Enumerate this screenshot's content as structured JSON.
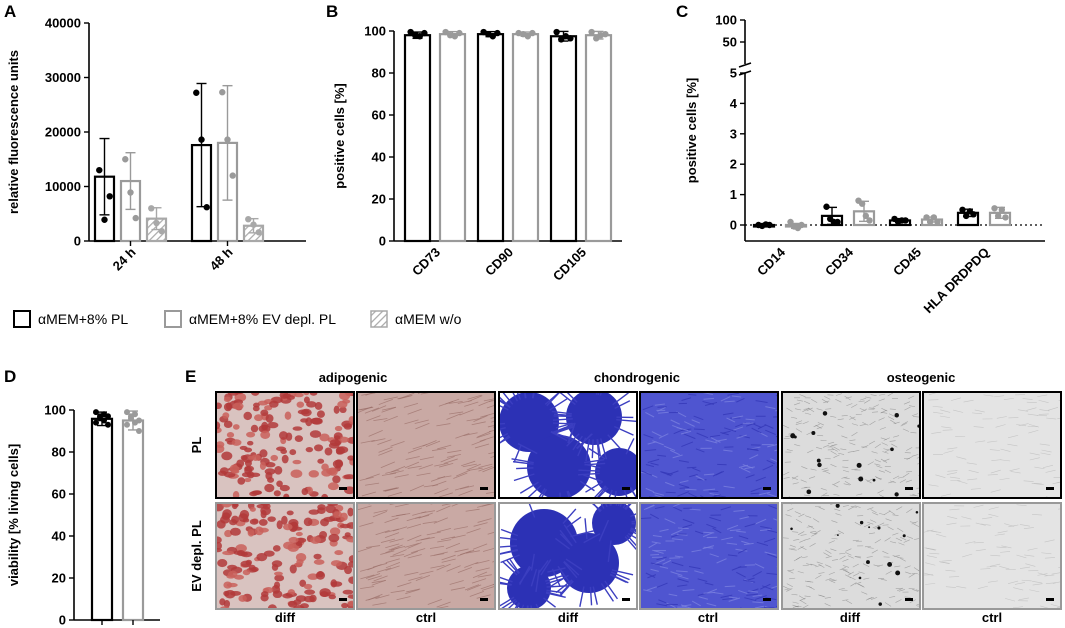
{
  "panel_letters": {
    "a": "A",
    "b": "B",
    "c": "C",
    "d": "D",
    "e": "E"
  },
  "legend": [
    {
      "label": "αMEM+8% PL",
      "style": "black-outline"
    },
    {
      "label": "αMEM+8% EV depl. PL",
      "style": "grey-outline"
    },
    {
      "label": "αMEM w/o",
      "style": "hatched"
    }
  ],
  "colors": {
    "pl": "#000000",
    "ev": "#9a9a9a",
    "hatch": "#a8a8a8",
    "adipo": "#b23a3a",
    "chondro": "#3b3ec0",
    "osteo": "#d8d8d8"
  },
  "chart_data": [
    {
      "id": "A",
      "type": "bar",
      "categories": [
        "24 h",
        "48 h"
      ],
      "ylabel": "relative fluorescence units",
      "ylim": [
        0,
        40000
      ],
      "yticks": [
        "0",
        "10000",
        "20000",
        "30000",
        "40000"
      ],
      "series": [
        {
          "name": "αMEM+8% PL",
          "values": [
            11800,
            17600
          ],
          "err": [
            7000,
            11300
          ],
          "points": [
            [
              13000,
              3900,
              8200
            ],
            [
              27200,
              18600,
              6200
            ]
          ]
        },
        {
          "name": "αMEM+8% EV depl. PL",
          "values": [
            11000,
            18000
          ],
          "err": [
            5200,
            10500
          ],
          "points": [
            [
              15000,
              8900,
              4200
            ],
            [
              27300,
              18600,
              12000
            ]
          ]
        },
        {
          "name": "αMEM w/o",
          "values": [
            4100,
            2800
          ],
          "err": [
            2000,
            1300
          ],
          "points": [
            [
              6000,
              3300,
              1800
            ],
            [
              4000,
              3000,
              1600
            ]
          ]
        }
      ]
    },
    {
      "id": "B",
      "type": "bar",
      "categories": [
        "CD73",
        "CD90",
        "CD105"
      ],
      "ylabel": "positive cells [%]",
      "ylim": [
        0,
        100
      ],
      "yticks": [
        "0",
        "20",
        "40",
        "60",
        "80",
        "100"
      ],
      "series": [
        {
          "name": "αMEM+8% PL",
          "values": [
            98,
            98.5,
            97.5
          ],
          "err": [
            1.5,
            1.2,
            2.3
          ],
          "points": [
            [
              99.5,
              98,
              97.5,
              99
            ],
            [
              99.5,
              98.5,
              97.5,
              99
            ],
            [
              99.5,
              96,
              97.5,
              96.5
            ]
          ]
        },
        {
          "name": "αMEM+8% EV depl. PL",
          "values": [
            98.5,
            98.5,
            98
          ],
          "err": [
            1.2,
            1,
            1.8
          ],
          "points": [
            [
              99.5,
              98,
              97.5,
              99
            ],
            [
              99,
              98.5,
              97.5,
              99
            ],
            [
              99.5,
              96.5,
              98,
              98.5
            ]
          ]
        }
      ]
    },
    {
      "id": "C",
      "type": "bar",
      "categories": [
        "CD14",
        "CD34",
        "CD45",
        "HLA DRDPDQ"
      ],
      "ylabel": "positive cells [%]",
      "ylim": [
        0,
        100
      ],
      "yticks": [
        "0",
        "1",
        "2",
        "3",
        "4",
        "5",
        "50",
        "100"
      ],
      "series": [
        {
          "name": "αMEM+8% PL",
          "values": [
            0,
            0.3,
            0.15,
            0.4
          ],
          "err": [
            0.03,
            0.28,
            0.06,
            0.12
          ],
          "points": [
            [
              0.0,
              -0.03,
              0.02,
              0.0
            ],
            [
              0.6,
              0.2,
              0.1,
              0.1
            ],
            [
              0.2,
              0.1,
              0.15,
              0.15
            ],
            [
              0.5,
              0.3,
              0.45,
              0.35
            ]
          ]
        },
        {
          "name": "αMEM+8% EV depl. PL",
          "values": [
            -0.03,
            0.45,
            0.18,
            0.4
          ],
          "err": [
            0.08,
            0.33,
            0.08,
            0.18
          ],
          "points": [
            [
              0.1,
              -0.05,
              -0.1,
              0.0
            ],
            [
              0.8,
              0.7,
              0.3,
              0.15
            ],
            [
              0.25,
              0.1,
              0.25,
              0.1
            ],
            [
              0.55,
              0.3,
              0.5,
              0.25
            ]
          ]
        }
      ]
    },
    {
      "id": "D",
      "type": "bar",
      "categories": [
        "αMEM+8% PL",
        "αMEM+8% EV depl. PL"
      ],
      "ylabel": "viability [% living cells]",
      "ylim": [
        0,
        100
      ],
      "yticks": [
        "0",
        "20",
        "40",
        "60",
        "80",
        "100"
      ],
      "series": [
        {
          "name": "viability",
          "values": [
            95.8,
            95
          ],
          "err": [
            3.2,
            4.5
          ],
          "points": [
            [
              99,
              97,
              95,
              93,
              94,
              96,
              98,
              97
            ],
            [
              99,
              97,
              94,
              90,
              93,
              96,
              98,
              95
            ]
          ]
        }
      ]
    }
  ],
  "panel_e": {
    "column_headers": [
      "adipogenic",
      "chondrogenic",
      "osteogenic"
    ],
    "row_labels": [
      "PL",
      "EV depl. PL"
    ],
    "column_labels": [
      "diff",
      "ctrl",
      "diff",
      "ctrl",
      "diff",
      "ctrl"
    ]
  }
}
